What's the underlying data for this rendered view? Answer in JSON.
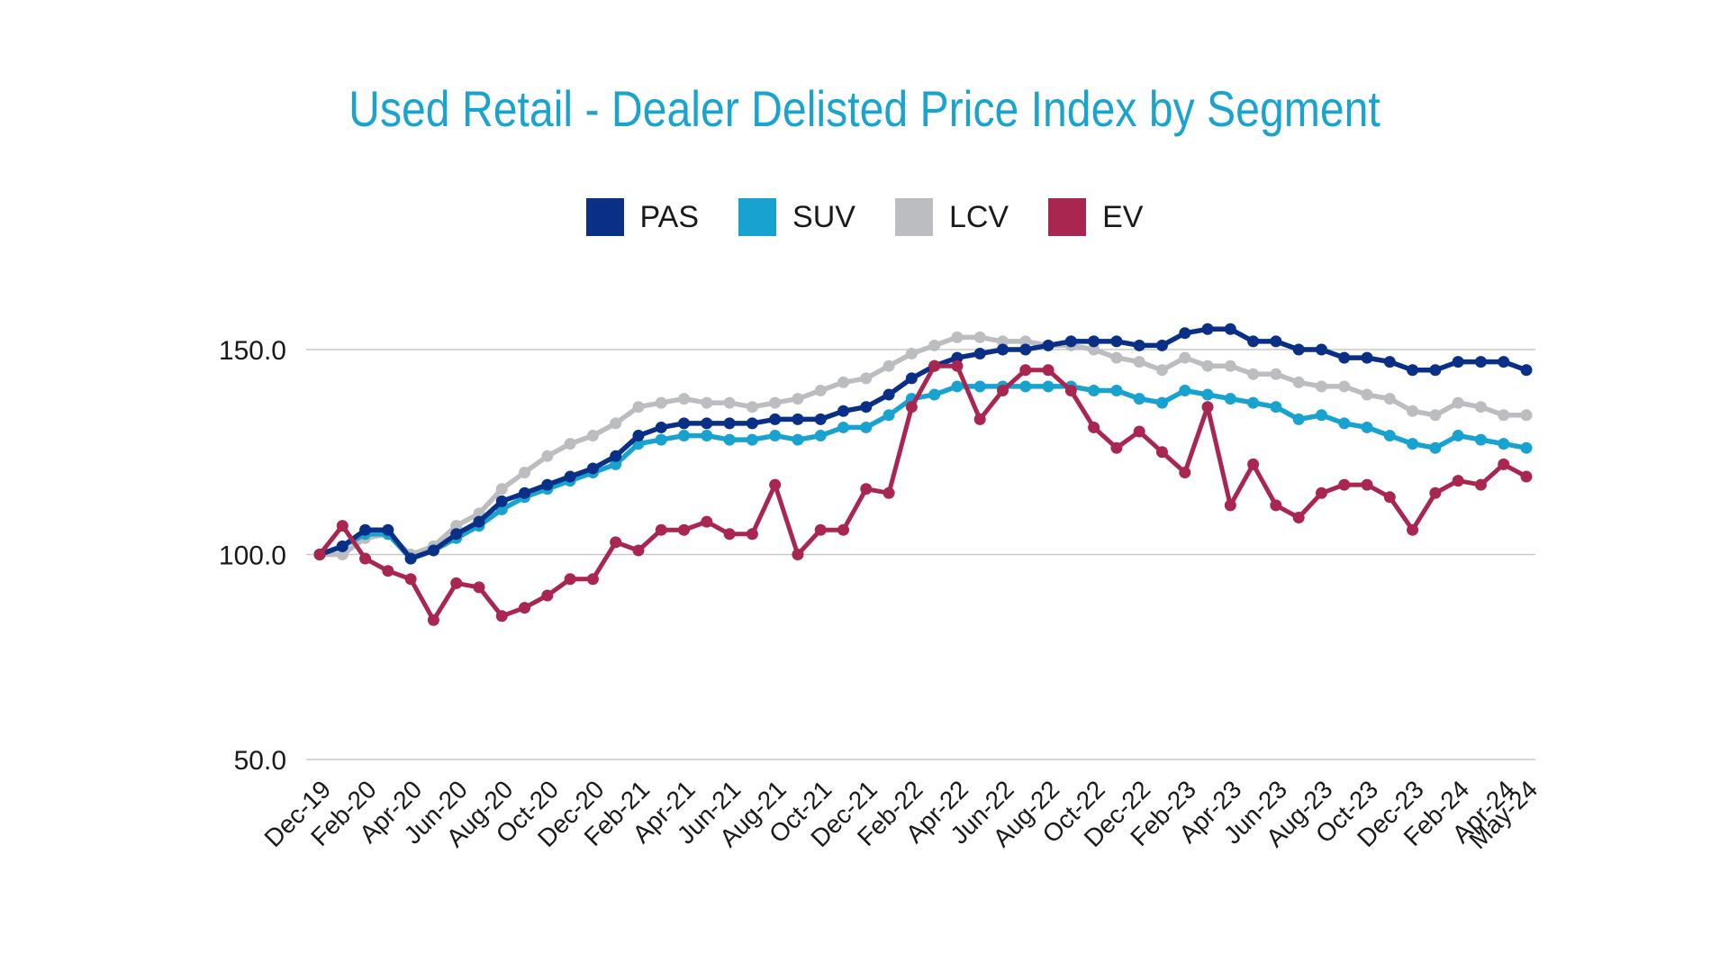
{
  "chart_data": {
    "type": "line",
    "title": "Used Retail - Dealer Delisted Price Index by Segment",
    "xlabel": "",
    "ylabel": "",
    "ylim": [
      50,
      160
    ],
    "yticks": [
      "150.0",
      "100.0",
      "50.0"
    ],
    "grid": true,
    "legend_position": "top",
    "x": [
      "Dec-19",
      "Jan-20",
      "Feb-20",
      "Mar-20",
      "Apr-20",
      "May-20",
      "Jun-20",
      "Jul-20",
      "Aug-20",
      "Sep-20",
      "Oct-20",
      "Nov-20",
      "Dec-20",
      "Jan-21",
      "Feb-21",
      "Mar-21",
      "Apr-21",
      "May-21",
      "Jun-21",
      "Jul-21",
      "Aug-21",
      "Sep-21",
      "Oct-21",
      "Nov-21",
      "Dec-21",
      "Jan-22",
      "Feb-22",
      "Mar-22",
      "Apr-22",
      "May-22",
      "Jun-22",
      "Jul-22",
      "Aug-22",
      "Sep-22",
      "Oct-22",
      "Nov-22",
      "Dec-22",
      "Jan-23",
      "Feb-23",
      "Mar-23",
      "Apr-23",
      "May-23",
      "Jun-23",
      "Jul-23",
      "Aug-23",
      "Sep-23",
      "Oct-23",
      "Nov-23",
      "Dec-23",
      "Jan-24",
      "Feb-24",
      "Mar-24",
      "Apr-24",
      "May-24"
    ],
    "x_tick_labels": [
      "Dec-19",
      "Feb-20",
      "Apr-20",
      "Jun-20",
      "Aug-20",
      "Oct-20",
      "Dec-20",
      "Feb-21",
      "Apr-21",
      "Jun-21",
      "Aug-21",
      "Oct-21",
      "Dec-21",
      "Feb-22",
      "Apr-22",
      "Jun-22",
      "Aug-22",
      "Oct-22",
      "Dec-22",
      "Feb-23",
      "Apr-23",
      "Jun-23",
      "Aug-23",
      "Oct-23",
      "Dec-23",
      "Feb-24",
      "Apr-24",
      "May-24"
    ],
    "series": [
      {
        "name": "PAS",
        "color": "#0a2f86",
        "values": [
          100,
          102,
          106,
          106,
          99,
          101,
          105,
          108,
          113,
          115,
          117,
          119,
          121,
          124,
          129,
          131,
          132,
          132,
          132,
          132,
          133,
          133,
          133,
          135,
          136,
          139,
          143,
          146,
          148,
          149,
          150,
          150,
          151,
          152,
          152,
          152,
          151,
          151,
          154,
          155,
          155,
          152,
          152,
          150,
          150,
          148,
          148,
          147,
          145,
          145,
          147,
          147,
          147,
          145
        ]
      },
      {
        "name": "SUV",
        "color": "#18a2d0",
        "values": [
          100,
          102,
          105,
          105,
          99,
          101,
          104,
          107,
          111,
          114,
          116,
          118,
          120,
          122,
          127,
          128,
          129,
          129,
          128,
          128,
          129,
          128,
          129,
          131,
          131,
          134,
          138,
          139,
          141,
          141,
          141,
          141,
          141,
          141,
          140,
          140,
          138,
          137,
          140,
          139,
          138,
          137,
          136,
          133,
          134,
          132,
          131,
          129,
          127,
          126,
          129,
          128,
          127,
          126
        ]
      },
      {
        "name": "LCV",
        "color": "#bcbdc0",
        "values": [
          100,
          100,
          104,
          105,
          100,
          102,
          107,
          110,
          116,
          120,
          124,
          127,
          129,
          132,
          136,
          137,
          138,
          137,
          137,
          136,
          137,
          138,
          140,
          142,
          143,
          146,
          149,
          151,
          153,
          153,
          152,
          152,
          151,
          151,
          150,
          148,
          147,
          145,
          148,
          146,
          146,
          144,
          144,
          142,
          141,
          141,
          139,
          138,
          135,
          134,
          137,
          136,
          134,
          134
        ]
      },
      {
        "name": "EV",
        "color": "#a8264f",
        "values": [
          100,
          107,
          99,
          96,
          94,
          84,
          93,
          92,
          85,
          87,
          90,
          94,
          94,
          103,
          101,
          106,
          106,
          108,
          105,
          105,
          117,
          100,
          106,
          106,
          116,
          115,
          136,
          146,
          146,
          133,
          140,
          145,
          145,
          140,
          131,
          126,
          130,
          125,
          120,
          136,
          112,
          122,
          112,
          109,
          115,
          117,
          117,
          114,
          106,
          115,
          118,
          117,
          122,
          119
        ]
      }
    ]
  }
}
